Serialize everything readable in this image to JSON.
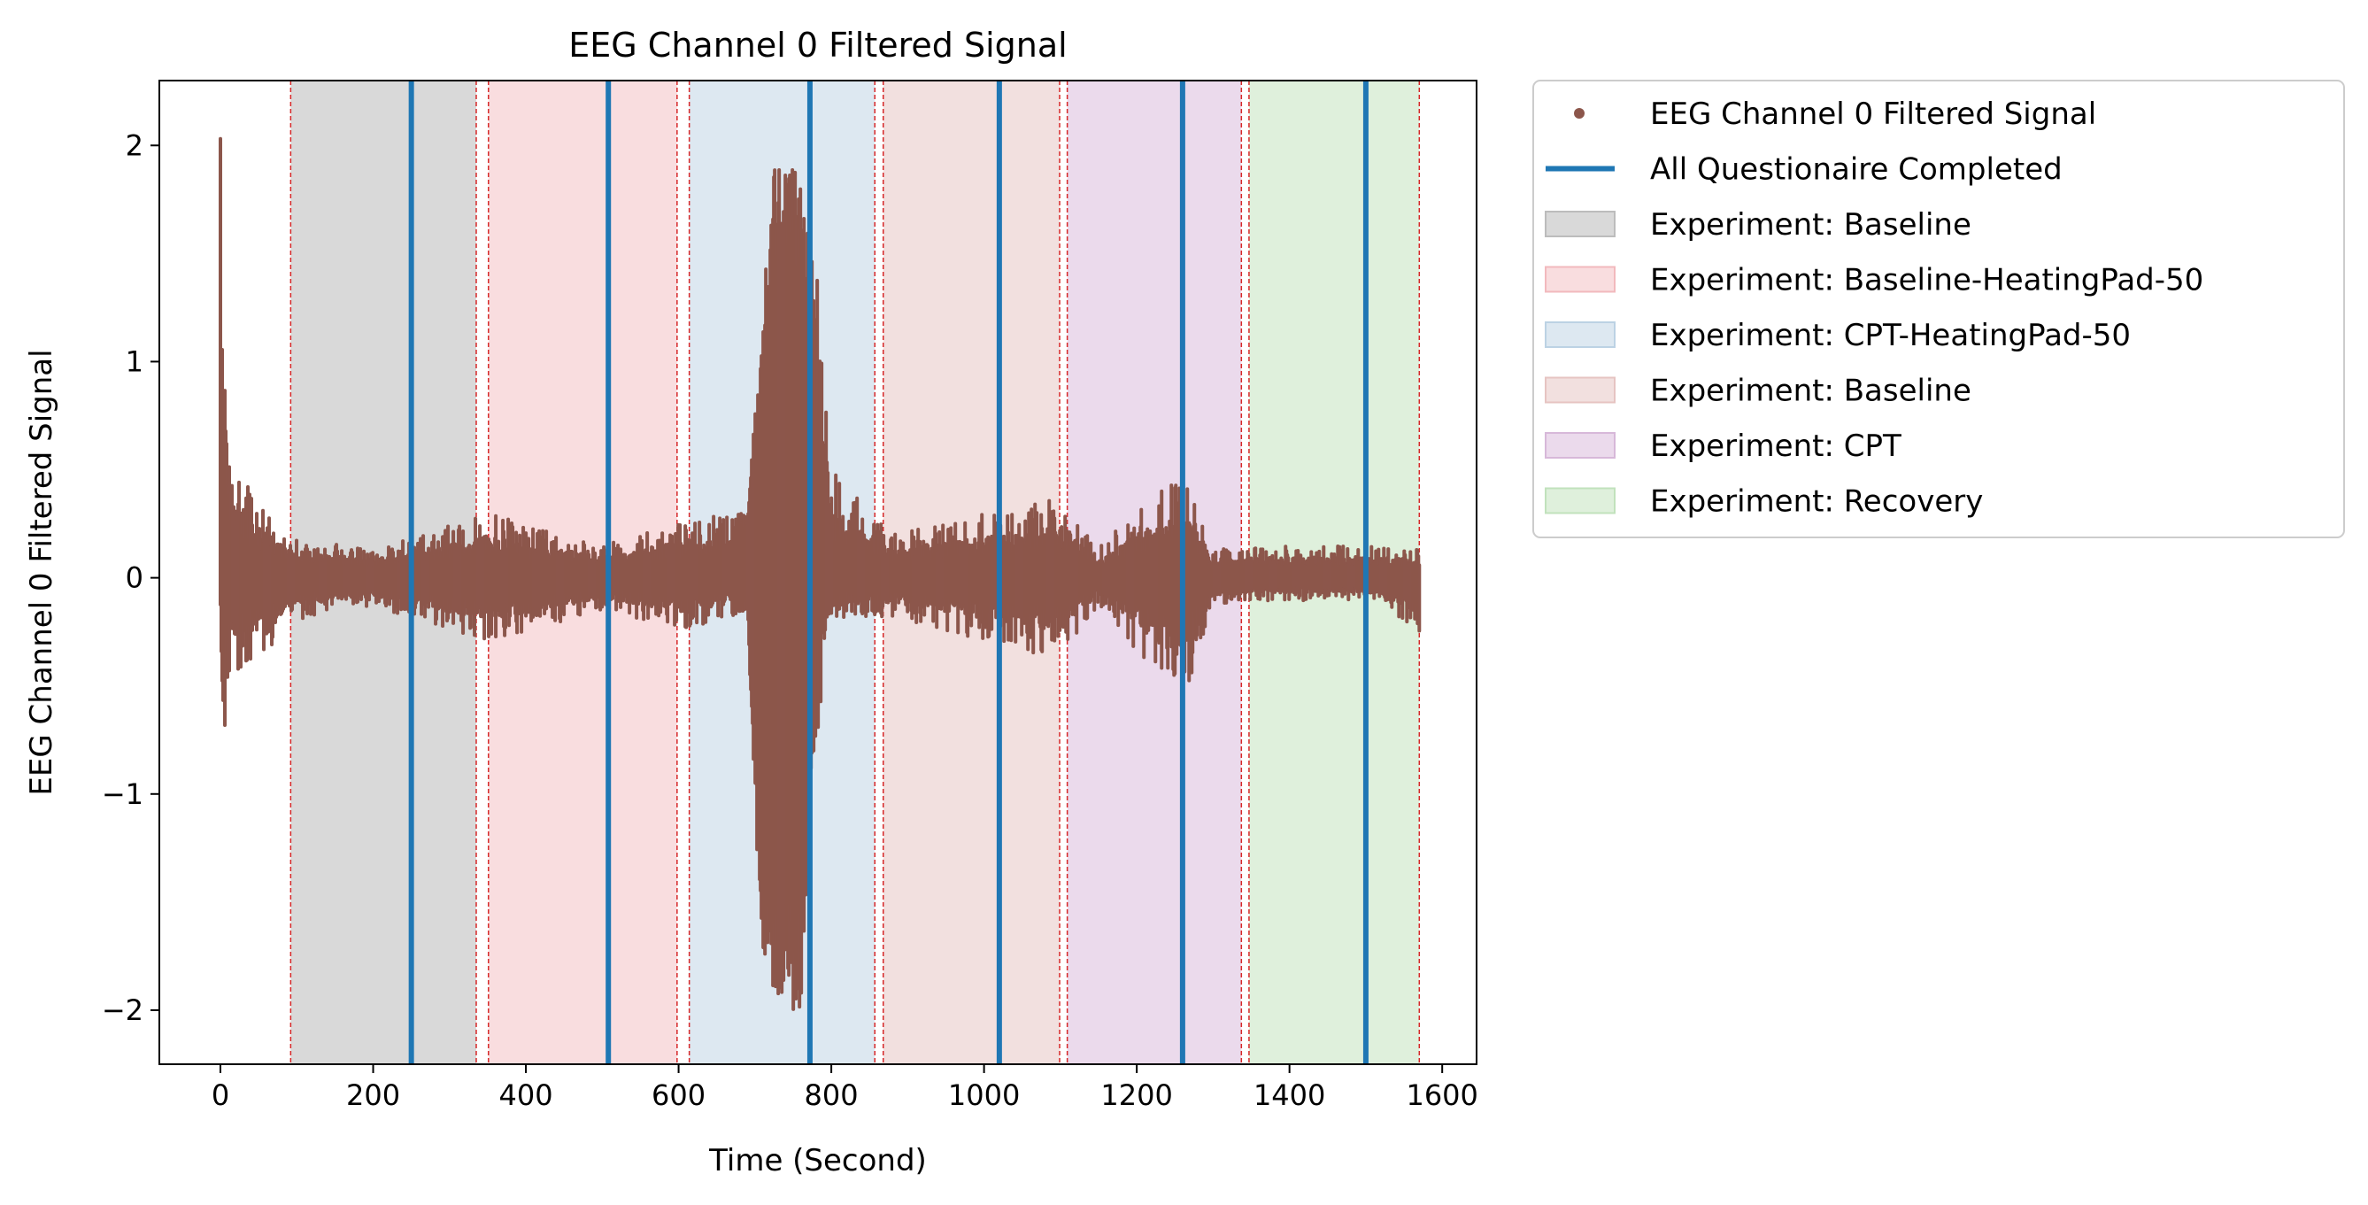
{
  "chart_data": {
    "type": "scatter",
    "title": "EEG Channel 0 Filtered Signal",
    "xlabel": "Time (Second)",
    "ylabel": "EEG Channel 0 Filtered Signal",
    "xlim": [
      -80,
      1645
    ],
    "ylim": [
      -2.25,
      2.3
    ],
    "xticks": [
      0,
      200,
      400,
      600,
      800,
      1000,
      1200,
      1400,
      1600
    ],
    "yticks": [
      -2,
      -1,
      0,
      1,
      2
    ],
    "ytick_labels": [
      "−2",
      "−1",
      "0",
      "1",
      "2"
    ],
    "grid": false,
    "legend_position": "outside-right",
    "colors": {
      "signal": "#8c564b",
      "questionnaire": "#1f77b4",
      "boundary": "#d62728"
    },
    "signal": {
      "name": "EEG Channel 0 Filtered Signal",
      "x_range": [
        0,
        1570
      ],
      "envelope": [
        {
          "x": 0,
          "min": -0.3,
          "max": 2.08
        },
        {
          "x": 3,
          "min": -1.05,
          "max": 2.05
        },
        {
          "x": 8,
          "min": -0.6,
          "max": 1.0
        },
        {
          "x": 15,
          "min": -0.5,
          "max": 0.68
        },
        {
          "x": 30,
          "min": -0.4,
          "max": 0.45
        },
        {
          "x": 60,
          "min": -0.35,
          "max": 0.32
        },
        {
          "x": 92,
          "min": -0.2,
          "max": 0.2
        },
        {
          "x": 200,
          "min": -0.13,
          "max": 0.13
        },
        {
          "x": 350,
          "min": -0.3,
          "max": 0.3
        },
        {
          "x": 500,
          "min": -0.15,
          "max": 0.15
        },
        {
          "x": 610,
          "min": -0.25,
          "max": 0.27
        },
        {
          "x": 690,
          "min": -0.15,
          "max": 0.3
        },
        {
          "x": 710,
          "min": -1.9,
          "max": 1.25
        },
        {
          "x": 725,
          "min": -2.02,
          "max": 1.92
        },
        {
          "x": 760,
          "min": -2.0,
          "max": 1.9
        },
        {
          "x": 775,
          "min": -0.9,
          "max": 1.5
        },
        {
          "x": 790,
          "min": -0.5,
          "max": 1.3
        },
        {
          "x": 800,
          "min": -0.2,
          "max": 0.5
        },
        {
          "x": 880,
          "min": -0.18,
          "max": 0.2
        },
        {
          "x": 1100,
          "min": -0.38,
          "max": 0.38
        },
        {
          "x": 1150,
          "min": -0.12,
          "max": 0.15
        },
        {
          "x": 1260,
          "min": -0.6,
          "max": 0.5
        },
        {
          "x": 1300,
          "min": -0.12,
          "max": 0.14
        },
        {
          "x": 1500,
          "min": -0.1,
          "max": 0.15
        },
        {
          "x": 1570,
          "min": -0.27,
          "max": 0.13
        }
      ]
    },
    "questionnaire_lines": {
      "name": "All Questionaire Completed",
      "x": [
        250,
        508,
        772,
        1020,
        1260,
        1500
      ]
    },
    "experiments": [
      {
        "label": "Experiment: Baseline",
        "start": 92,
        "end": 335,
        "color": "#7f7f7f",
        "opacity": 0.3
      },
      {
        "label": "Experiment: Baseline-HeatingPad-50",
        "start": 351,
        "end": 598,
        "color": "#e377c2",
        "opacity": 0.0
      },
      {
        "label": "Experiment: CPT-HeatingPad-50",
        "start": 614,
        "end": 857,
        "color": "#1f77b4",
        "opacity": 0.15
      },
      {
        "label": "Experiment: Baseline",
        "start": 868,
        "end": 1099,
        "color": "#d62728",
        "opacity": 0.15
      },
      {
        "label": "Experiment: CPT",
        "start": 1109,
        "end": 1337,
        "color": "#9467bd",
        "opacity": 0.2
      },
      {
        "label": "Experiment: Recovery",
        "start": 1347,
        "end": 1570,
        "color": "#2ca02c",
        "opacity": 0.15
      }
    ],
    "experiment_fills": [
      "#d9d9d9",
      "#f9dddf",
      "#dde8f1",
      "#f2e0df",
      "#ebdaec",
      "#dff0dc"
    ],
    "boundary_lines_x": [
      92,
      335,
      351,
      598,
      614,
      857,
      868,
      1099,
      1109,
      1337,
      1347,
      1570
    ],
    "legend": [
      {
        "label": "EEG Channel 0 Filtered Signal",
        "kind": "marker",
        "color": "#8c564b"
      },
      {
        "label": "All Questionaire Completed",
        "kind": "line",
        "color": "#1f77b4"
      },
      {
        "label": "Experiment: Baseline",
        "kind": "patch",
        "fill": "#d9d9d9",
        "stroke": "#bcbcbc"
      },
      {
        "label": "Experiment: Baseline-HeatingPad-50",
        "kind": "patch",
        "fill": "#f9dddf",
        "stroke": "#f2b9bd"
      },
      {
        "label": "Experiment: CPT-HeatingPad-50",
        "kind": "patch",
        "fill": "#dde8f1",
        "stroke": "#bcd2e4"
      },
      {
        "label": "Experiment: Baseline",
        "kind": "patch",
        "fill": "#f2e0df",
        "stroke": "#e6c4c2"
      },
      {
        "label": "Experiment: CPT",
        "kind": "patch",
        "fill": "#ebdaec",
        "stroke": "#d7b8d9"
      },
      {
        "label": "Experiment: Recovery",
        "kind": "patch",
        "fill": "#dff0dc",
        "stroke": "#c1e2bc"
      }
    ]
  }
}
